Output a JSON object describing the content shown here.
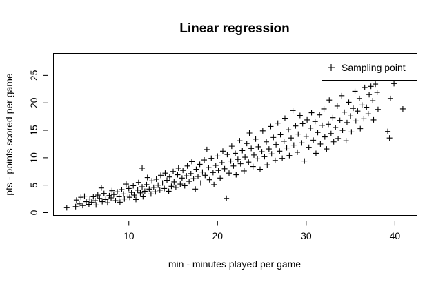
{
  "chart_data": {
    "type": "scatter",
    "title": "Linear regression",
    "xlabel": "min - minutes played per game",
    "ylabel": "pts - points scored per game",
    "xlim": [
      1.5,
      42.5
    ],
    "ylim": [
      -0.5,
      29
    ],
    "xticks": [
      10,
      20,
      30,
      40
    ],
    "yticks": [
      0,
      5,
      10,
      15,
      20,
      25
    ],
    "grid": false,
    "legend": {
      "position": "top-right",
      "entries": [
        {
          "label": "Sampling point",
          "marker": "+"
        }
      ]
    },
    "marker_color": "#000000",
    "series": [
      {
        "name": "Sampling point",
        "points": [
          [
            3,
            0.9
          ],
          [
            4,
            1.1
          ],
          [
            4.1,
            2.3
          ],
          [
            4.4,
            1.6
          ],
          [
            4.6,
            2.8
          ],
          [
            4.8,
            1.3
          ],
          [
            5,
            3
          ],
          [
            5.2,
            2
          ],
          [
            5.5,
            1.5
          ],
          [
            5.6,
            2.5
          ],
          [
            5.8,
            1.9
          ],
          [
            6,
            2.9
          ],
          [
            6.2,
            2.2
          ],
          [
            6.3,
            1.4
          ],
          [
            6.5,
            3.2
          ],
          [
            6.7,
            2.6
          ],
          [
            6.9,
            4.5
          ],
          [
            7,
            2
          ],
          [
            7.2,
            3.5
          ],
          [
            7.4,
            2.4
          ],
          [
            7.6,
            1.8
          ],
          [
            7.8,
            3.1
          ],
          [
            8,
            2.7
          ],
          [
            8.1,
            4
          ],
          [
            8.3,
            3.3
          ],
          [
            8.5,
            2.2
          ],
          [
            8.7,
            3.8
          ],
          [
            8.9,
            2.9
          ],
          [
            9,
            1.9
          ],
          [
            9.2,
            4.2
          ],
          [
            9.4,
            3.4
          ],
          [
            9.5,
            2.5
          ],
          [
            9.7,
            5.2
          ],
          [
            9.9,
            3
          ],
          [
            10,
            4.4
          ],
          [
            10.1,
            2.8
          ],
          [
            10.3,
            3.7
          ],
          [
            10.5,
            4.9
          ],
          [
            10.6,
            3.2
          ],
          [
            10.8,
            2.4
          ],
          [
            11,
            4.1
          ],
          [
            11.1,
            5.5
          ],
          [
            11.3,
            3.6
          ],
          [
            11.5,
            4.7
          ],
          [
            11.6,
            2.9
          ],
          [
            11.8,
            3.9
          ],
          [
            12,
            5.1
          ],
          [
            12.1,
            6.4
          ],
          [
            12.3,
            4.3
          ],
          [
            12.5,
            3.4
          ],
          [
            11.5,
            8.1
          ],
          [
            12.6,
            5.8
          ],
          [
            12.8,
            4.6
          ],
          [
            13,
            3.8
          ],
          [
            13.1,
            6.1
          ],
          [
            13.3,
            5
          ],
          [
            13.5,
            4.1
          ],
          [
            13.6,
            6.8
          ],
          [
            13.8,
            5.4
          ],
          [
            14,
            4.4
          ],
          [
            14.1,
            7.2
          ],
          [
            14.3,
            5.9
          ],
          [
            14.5,
            3.9
          ],
          [
            14.6,
            6.5
          ],
          [
            14.8,
            4.8
          ],
          [
            15,
            7.5
          ],
          [
            15.1,
            5.6
          ],
          [
            15.3,
            4.6
          ],
          [
            15.5,
            6.9
          ],
          [
            15.6,
            8.1
          ],
          [
            15.8,
            5.2
          ],
          [
            16,
            6.3
          ],
          [
            16.1,
            7.7
          ],
          [
            16.3,
            4.9
          ],
          [
            16.5,
            6.7
          ],
          [
            16.6,
            8.5
          ],
          [
            16.8,
            5.7
          ],
          [
            17,
            7.1
          ],
          [
            17.1,
            9.3
          ],
          [
            17.3,
            6.2
          ],
          [
            17.5,
            4.3
          ],
          [
            17.6,
            7.9
          ],
          [
            17.8,
            6.6
          ],
          [
            18,
            8.8
          ],
          [
            18.1,
            5.4
          ],
          [
            18.3,
            7.4
          ],
          [
            18.5,
            9.6
          ],
          [
            18.6,
            6.8
          ],
          [
            18.8,
            11.5
          ],
          [
            19,
            8.2
          ],
          [
            19.1,
            6
          ],
          [
            19.3,
            9.9
          ],
          [
            19.5,
            7.3
          ],
          [
            19.6,
            5.1
          ],
          [
            19.8,
            8.6
          ],
          [
            20,
            10.3
          ],
          [
            20.1,
            7.7
          ],
          [
            20.3,
            6.3
          ],
          [
            20.5,
            9.1
          ],
          [
            20.6,
            11.2
          ],
          [
            20.8,
            8
          ],
          [
            21,
            2.6
          ],
          [
            21.1,
            10.6
          ],
          [
            21.3,
            7.2
          ],
          [
            21.5,
            9.4
          ],
          [
            21.6,
            12.1
          ],
          [
            21.8,
            8.5
          ],
          [
            22,
            10.8
          ],
          [
            22.1,
            6.9
          ],
          [
            22.3,
            9.7
          ],
          [
            22.5,
            13.1
          ],
          [
            22.6,
            8.9
          ],
          [
            22.8,
            11.3
          ],
          [
            23,
            7.6
          ],
          [
            23.1,
            10.1
          ],
          [
            23.3,
            12.6
          ],
          [
            23.5,
            9.2
          ],
          [
            23.6,
            14.5
          ],
          [
            23.8,
            11.7
          ],
          [
            24,
            8.4
          ],
          [
            24.1,
            10.5
          ],
          [
            24.3,
            13.4
          ],
          [
            24.5,
            9.8
          ],
          [
            24.6,
            12
          ],
          [
            24.8,
            7.9
          ],
          [
            25,
            11.1
          ],
          [
            25.1,
            14.9
          ],
          [
            25.3,
            10.2
          ],
          [
            25.5,
            12.9
          ],
          [
            25.6,
            8.7
          ],
          [
            25.8,
            11.6
          ],
          [
            26,
            15.7
          ],
          [
            26.1,
            10.7
          ],
          [
            26.3,
            13.7
          ],
          [
            26.5,
            9.5
          ],
          [
            26.6,
            12.4
          ],
          [
            26.8,
            16.3
          ],
          [
            27,
            11.2
          ],
          [
            27.1,
            14.2
          ],
          [
            27.3,
            9.9
          ],
          [
            27.5,
            13
          ],
          [
            27.6,
            17.2
          ],
          [
            27.8,
            11.8
          ],
          [
            28,
            15.1
          ],
          [
            28.1,
            10.4
          ],
          [
            28.3,
            13.6
          ],
          [
            28.5,
            18.6
          ],
          [
            28.6,
            12.3
          ],
          [
            28.8,
            15.8
          ],
          [
            29,
            11
          ],
          [
            29.1,
            14.3
          ],
          [
            29.3,
            17.7
          ],
          [
            29.5,
            12.7
          ],
          [
            29.6,
            16.2
          ],
          [
            29.8,
            9.4
          ],
          [
            30,
            13.9
          ],
          [
            30.1,
            16.9
          ],
          [
            30.3,
            11.9
          ],
          [
            30.5,
            15.4
          ],
          [
            30.6,
            18.2
          ],
          [
            30.8,
            13.2
          ],
          [
            31,
            16.6
          ],
          [
            31.1,
            10.8
          ],
          [
            31.3,
            14.6
          ],
          [
            31.5,
            17.8
          ],
          [
            31.6,
            12.5
          ],
          [
            31.8,
            15.9
          ],
          [
            32,
            18.9
          ],
          [
            32.1,
            13.8
          ],
          [
            32.3,
            11.6
          ],
          [
            32.5,
            16.1
          ],
          [
            32.6,
            20.5
          ],
          [
            32.8,
            14.4
          ],
          [
            33,
            17.3
          ],
          [
            33.1,
            12.9
          ],
          [
            33.3,
            15.5
          ],
          [
            33.5,
            19.4
          ],
          [
            33.6,
            13.5
          ],
          [
            33.8,
            16.8
          ],
          [
            34,
            21.3
          ],
          [
            34.1,
            15
          ],
          [
            34.3,
            18.3
          ],
          [
            34.5,
            13.1
          ],
          [
            34.6,
            16.4
          ],
          [
            34.8,
            20.1
          ],
          [
            35,
            17.6
          ],
          [
            35.1,
            14.7
          ],
          [
            35.3,
            19
          ],
          [
            35.5,
            22.1
          ],
          [
            35.6,
            16.7
          ],
          [
            35.8,
            18.5
          ],
          [
            36,
            20.8
          ],
          [
            36.1,
            15.3
          ],
          [
            36.3,
            19.6
          ],
          [
            36.5,
            17.1
          ],
          [
            36.6,
            22.8
          ],
          [
            36.8,
            19.2
          ],
          [
            37,
            18
          ],
          [
            37.1,
            21.5
          ],
          [
            37.3,
            23
          ],
          [
            37.5,
            20.4
          ],
          [
            37.6,
            16.9
          ],
          [
            37.8,
            23.4
          ],
          [
            38,
            21.9
          ],
          [
            38.1,
            18.8
          ],
          [
            39.2,
            14.8
          ],
          [
            39.4,
            13.6
          ],
          [
            39.5,
            20.8
          ],
          [
            39.9,
            23.5
          ],
          [
            40.9,
            18.9
          ]
        ]
      }
    ]
  }
}
